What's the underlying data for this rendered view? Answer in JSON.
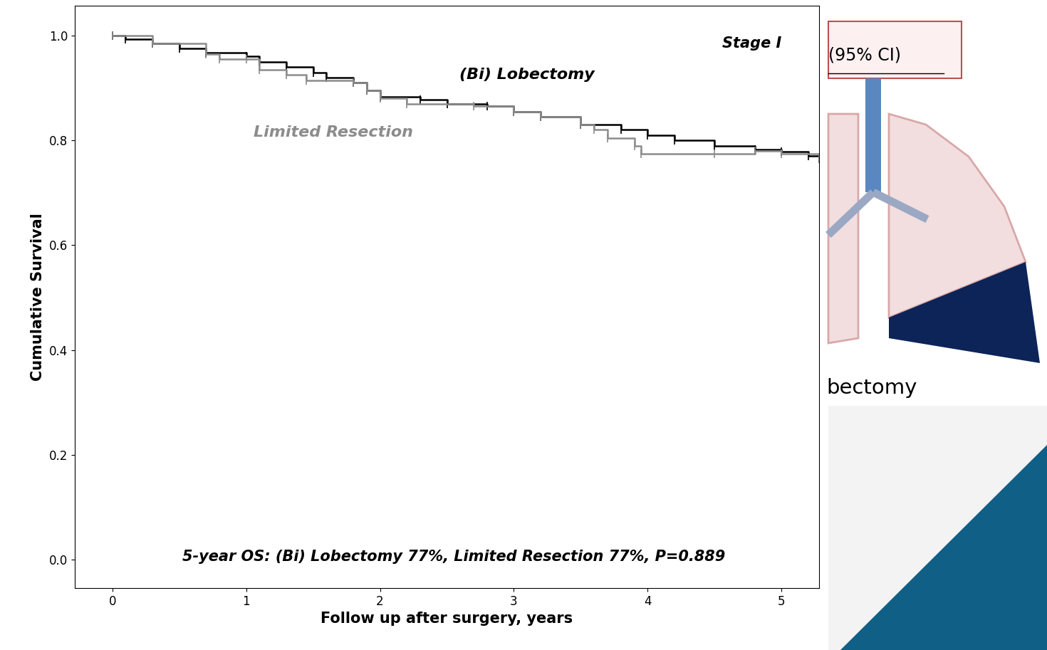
{
  "chart_data": {
    "type": "line",
    "title": "Stage I",
    "x_label": "Follow up after surgery, years",
    "y_label": "Cumulative Survival",
    "annotations": [
      "5-year OS: (Bi) Lobectomy 77%, Limited Resection 77%, P=0.889",
      "(95% CI)",
      "bectomy"
    ],
    "xlim": [
      -0.28,
      5.28
    ],
    "ylim": [
      -0.054,
      1.057
    ],
    "xticks": [
      0,
      1,
      2,
      3,
      4,
      5
    ],
    "yticks": [
      {
        "value": 0,
        "label": "0.0"
      },
      {
        "value": 0.2,
        "label": "0.2"
      },
      {
        "value": 0.4,
        "label": "0.4"
      },
      {
        "value": 0.6,
        "label": "0.6"
      },
      {
        "value": 0.8,
        "label": "0.8"
      },
      {
        "value": 1,
        "label": "1.0"
      }
    ],
    "grid": false,
    "series": [
      {
        "name": "(Bi) Lobectomy",
        "color": "#000000",
        "line_style": "steps",
        "marker": "|",
        "x": [
          0,
          0.1,
          0.3,
          0.5,
          0.7,
          1.0,
          1.1,
          1.3,
          1.5,
          1.6,
          1.8,
          1.9,
          2.0,
          2.3,
          2.5,
          2.8,
          3.0,
          3.2,
          3.5,
          3.8,
          4.0,
          4.2,
          4.5,
          4.8,
          5.0,
          5.2,
          5.28
        ],
        "values": [
          1.0,
          0.993,
          0.985,
          0.975,
          0.968,
          0.96,
          0.95,
          0.94,
          0.93,
          0.92,
          0.91,
          0.895,
          0.883,
          0.878,
          0.87,
          0.865,
          0.855,
          0.845,
          0.83,
          0.82,
          0.81,
          0.8,
          0.79,
          0.783,
          0.778,
          0.77,
          0.765
        ]
      },
      {
        "name": "Limited Resection",
        "color": "#8c8c8c",
        "line_style": "steps",
        "marker": "|",
        "x": [
          0,
          0.3,
          0.7,
          0.8,
          1.0,
          1.1,
          1.3,
          1.45,
          1.8,
          1.9,
          2.0,
          2.2,
          2.7,
          3.0,
          3.2,
          3.5,
          3.6,
          3.7,
          3.9,
          3.95,
          4.5,
          4.8,
          5.0,
          5.28
        ],
        "values": [
          1.0,
          0.985,
          0.965,
          0.955,
          0.955,
          0.935,
          0.925,
          0.915,
          0.91,
          0.895,
          0.88,
          0.87,
          0.865,
          0.855,
          0.845,
          0.83,
          0.82,
          0.805,
          0.79,
          0.775,
          0.775,
          0.78,
          0.775,
          0.765
        ]
      }
    ]
  }
}
